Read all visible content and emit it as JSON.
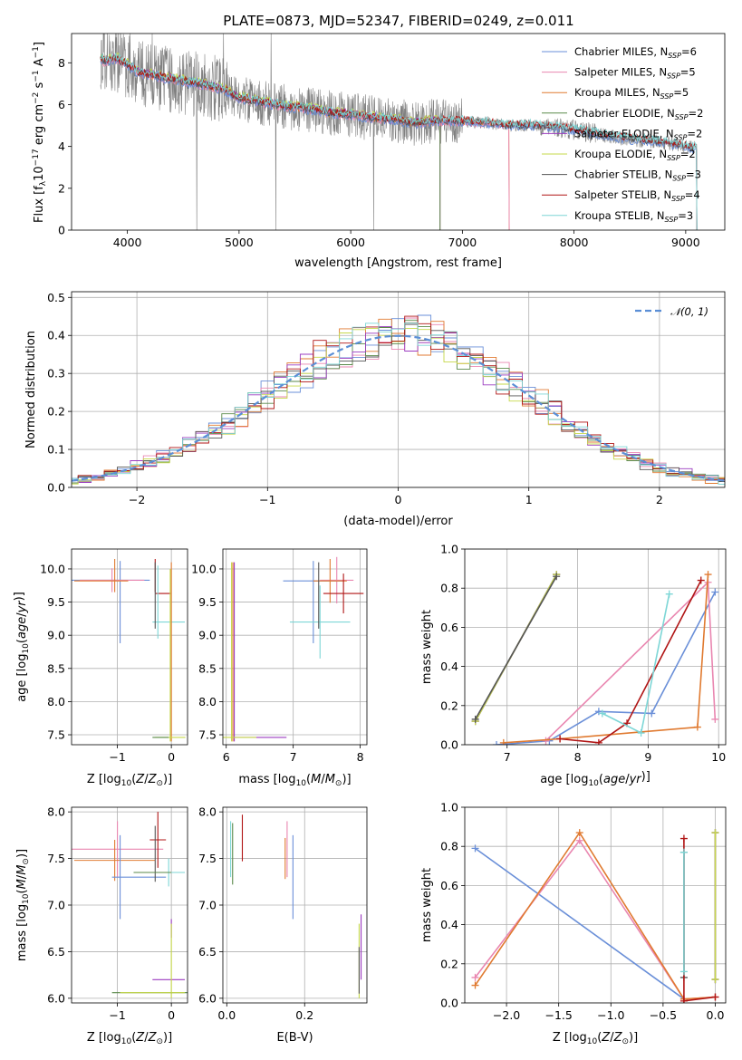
{
  "title": "PLATE=0873, MJD=52347, FIBERID=0249, z=0.011",
  "colors": {
    "chabrier_miles": "#6a8fd8",
    "salpeter_miles": "#e986b0",
    "kroupa_miles": "#e07a30",
    "chabrier_elodie": "#5a8a4a",
    "salpeter_elodie": "#9b3cc0",
    "kroupa_elodie": "#c6d84a",
    "chabrier_stelib": "#555555",
    "salpeter_stelib": "#b01515",
    "kroupa_stelib": "#7dd6d6",
    "data": "#808080"
  },
  "chart_data": [
    {
      "id": "spectrum",
      "type": "line",
      "title": "PLATE=0873, MJD=52347, FIBERID=0249, z=0.011",
      "xlabel": "wavelength [Angstrom, rest frame]",
      "ylabel_parts": [
        "Flux [f",
        "λ",
        "10",
        "−17",
        " erg cm",
        "−2",
        " s",
        "−1",
        " A",
        "−1",
        "]"
      ],
      "xlim": [
        3500,
        9350
      ],
      "ylim": [
        0,
        9.4
      ],
      "xticks": [
        4000,
        5000,
        6000,
        7000,
        8000,
        9000
      ],
      "yticks": [
        0,
        2,
        4,
        6,
        8
      ],
      "legend": [
        {
          "name": "Chabrier MILES",
          "n": "6",
          "color_key": "chabrier_miles"
        },
        {
          "name": "Salpeter MILES",
          "n": "5",
          "color_key": "salpeter_miles"
        },
        {
          "name": "Kroupa MILES",
          "n": "5",
          "color_key": "kroupa_miles"
        },
        {
          "name": "Chabrier ELODIE",
          "n": "2",
          "color_key": "chabrier_elodie"
        },
        {
          "name": "Salpeter ELODIE",
          "n": "2",
          "color_key": "salpeter_elodie"
        },
        {
          "name": "Kroupa ELODIE",
          "n": "2",
          "color_key": "kroupa_elodie"
        },
        {
          "name": "Chabrier STELIB",
          "n": "3",
          "color_key": "chabrier_stelib"
        },
        {
          "name": "Salpeter STELIB",
          "n": "4",
          "color_key": "salpeter_stelib"
        },
        {
          "name": "Kroupa STELIB",
          "n": "3",
          "color_key": "kroupa_stelib"
        }
      ],
      "legend_subscript": "SSP",
      "legend_placement": "top-right",
      "continuum": [
        [
          3750,
          8.3
        ],
        [
          3800,
          8.0
        ],
        [
          3900,
          8.2
        ],
        [
          4000,
          7.9
        ],
        [
          4100,
          7.5
        ],
        [
          4300,
          7.3
        ],
        [
          4500,
          7.1
        ],
        [
          4700,
          6.9
        ],
        [
          4861,
          6.7
        ],
        [
          5000,
          6.3
        ],
        [
          5200,
          6.1
        ],
        [
          5400,
          5.9
        ],
        [
          5600,
          5.8
        ],
        [
          5800,
          5.6
        ],
        [
          6000,
          5.5
        ],
        [
          6200,
          5.35
        ],
        [
          6400,
          5.25
        ],
        [
          6563,
          5.1
        ],
        [
          6800,
          5.2
        ],
        [
          7000,
          5.2
        ],
        [
          7200,
          5.15
        ],
        [
          7400,
          5.0
        ],
        [
          7600,
          5.0
        ],
        [
          7800,
          4.9
        ],
        [
          8000,
          4.8
        ],
        [
          8200,
          4.6
        ],
        [
          8400,
          4.4
        ],
        [
          8600,
          4.3
        ],
        [
          8800,
          4.2
        ],
        [
          9000,
          4.0
        ],
        [
          9100,
          3.9
        ]
      ],
      "elodie_end": 6800,
      "miles_end": 7420,
      "stelib_end": 9100
    },
    {
      "id": "residuals",
      "type": "line",
      "xlabel": "(data-model)/error",
      "ylabel": "Normed distribution",
      "xlim": [
        -2.5,
        2.5
      ],
      "ylim": [
        0,
        0.515
      ],
      "xticks": [
        -2,
        -1,
        0,
        1,
        2
      ],
      "yticks": [
        0,
        0.1,
        0.2,
        0.3,
        0.4,
        0.5
      ],
      "grid": true,
      "legend_label": "𝒩(0, 1)",
      "legend_placement": "top-right",
      "normal_curve": {
        "mean": 0,
        "sigma": 1
      }
    },
    {
      "id": "age_vs_Z",
      "type": "scatter",
      "xlabel": "Z [log10(Z/Z⊙)]",
      "ylabel": "age  [log10(age/yr)]",
      "xlim": [
        -1.85,
        0.3
      ],
      "ylim": [
        7.35,
        10.3
      ],
      "xticks": [
        -1,
        0
      ],
      "yticks": [
        7.5,
        8.0,
        8.5,
        9.0,
        9.5,
        10.0
      ],
      "grid": true
    },
    {
      "id": "age_vs_mass",
      "type": "scatter",
      "xlabel": "mass [log10(M/M⊙)]",
      "xlim": [
        5.95,
        8.1
      ],
      "ylim": [
        7.35,
        10.3
      ],
      "xticks": [
        6,
        7,
        8
      ],
      "yticks": [
        7.5,
        8.0,
        8.5,
        9.0,
        9.5,
        10.0
      ],
      "grid": true
    },
    {
      "id": "mw_vs_age",
      "type": "line",
      "xlabel": "age  [log10(age/yr)]",
      "ylabel": "mass weight",
      "xlim": [
        6.4,
        10.1
      ],
      "ylim": [
        0,
        1.0
      ],
      "xticks": [
        7,
        8,
        9,
        10
      ],
      "yticks": [
        0.0,
        0.2,
        0.4,
        0.6,
        0.8,
        1.0
      ],
      "grid": true,
      "series": [
        {
          "color_key": "chabrier_miles",
          "x": [
            6.85,
            7.6,
            8.3,
            9.05,
            9.95
          ],
          "y": [
            0.0,
            0.02,
            0.17,
            0.16,
            0.78
          ]
        },
        {
          "color_key": "salpeter_miles",
          "x": [
            7.55,
            9.85,
            9.95
          ],
          "y": [
            0.02,
            0.83,
            0.13
          ]
        },
        {
          "color_key": "kroupa_miles",
          "x": [
            6.95,
            7.75,
            9.7,
            9.85
          ],
          "y": [
            0.01,
            0.03,
            0.09,
            0.87
          ]
        },
        {
          "color_key": "chabrier_elodie",
          "x": [
            6.55,
            7.7
          ],
          "y": [
            0.12,
            0.87
          ]
        },
        {
          "color_key": "salpeter_elodie",
          "x": [
            6.55,
            7.7
          ],
          "y": [
            0.12,
            0.87
          ]
        },
        {
          "color_key": "kroupa_elodie",
          "x": [
            6.55,
            7.7
          ],
          "y": [
            0.12,
            0.87
          ]
        },
        {
          "color_key": "chabrier_stelib",
          "x": [
            6.55,
            7.7
          ],
          "y": [
            0.13,
            0.86
          ]
        },
        {
          "color_key": "salpeter_stelib",
          "x": [
            7.75,
            8.3,
            8.7,
            9.75
          ],
          "y": [
            0.03,
            0.01,
            0.11,
            0.84
          ]
        },
        {
          "color_key": "kroupa_stelib",
          "x": [
            8.35,
            8.9,
            9.3
          ],
          "y": [
            0.16,
            0.06,
            0.77
          ]
        }
      ]
    },
    {
      "id": "mass_vs_Z",
      "type": "scatter",
      "xlabel": "Z [log10(Z/Z⊙)]",
      "ylabel": "mass [log10(M/M⊙)]",
      "xlim": [
        -1.85,
        0.3
      ],
      "ylim": [
        5.95,
        8.05
      ],
      "xticks": [
        -1,
        0
      ],
      "yticks": [
        6.0,
        6.5,
        7.0,
        7.5,
        8.0
      ],
      "grid": true
    },
    {
      "id": "mass_vs_ebv",
      "type": "scatter",
      "xlabel": "E(B-V)",
      "xlim": [
        -0.01,
        0.36
      ],
      "ylim": [
        5.95,
        8.05
      ],
      "xticks": [
        0.0,
        0.2
      ],
      "yticks": [
        6.0,
        6.5,
        7.0,
        7.5,
        8.0
      ],
      "grid": true
    },
    {
      "id": "mw_vs_Z",
      "type": "line",
      "xlabel": "Z [log10(Z/Z⊙)]",
      "ylabel": "mass weight",
      "xlim": [
        -2.4,
        0.1
      ],
      "ylim": [
        0,
        1.0
      ],
      "xticks": [
        -2.0,
        -1.5,
        -1.0,
        -0.5,
        0.0
      ],
      "yticks": [
        0.0,
        0.2,
        0.4,
        0.6,
        0.8,
        1.0
      ],
      "grid": true,
      "series": [
        {
          "color_key": "chabrier_miles",
          "x": [
            -2.3,
            -0.3
          ],
          "y": [
            0.79,
            0.02
          ]
        },
        {
          "color_key": "salpeter_miles",
          "x": [
            -2.3,
            -1.3,
            -0.3,
            0.0
          ],
          "y": [
            0.13,
            0.83,
            0.02,
            0.03
          ]
        },
        {
          "color_key": "kroupa_miles",
          "x": [
            -2.3,
            -1.3,
            -0.3,
            0.0
          ],
          "y": [
            0.09,
            0.87,
            0.02,
            0.03
          ]
        },
        {
          "color_key": "chabrier_elodie",
          "x": [
            0.0,
            0.0
          ],
          "y": [
            0.12,
            0.87
          ]
        },
        {
          "color_key": "salpeter_elodie",
          "x": [
            0.0,
            0.0
          ],
          "y": [
            0.12,
            0.87
          ]
        },
        {
          "color_key": "kroupa_elodie",
          "x": [
            0.0,
            0.0
          ],
          "y": [
            0.12,
            0.87
          ]
        },
        {
          "color_key": "chabrier_stelib",
          "x": [
            -0.3,
            -0.3
          ],
          "y": [
            0.13,
            0.77
          ]
        },
        {
          "color_key": "salpeter_stelib",
          "x": [
            -0.3,
            -0.3,
            0.0
          ],
          "y": [
            0.84,
            0.01,
            0.03
          ]
        },
        {
          "color_key": "kroupa_stelib",
          "x": [
            -0.3,
            -0.3
          ],
          "y": [
            0.16,
            0.77
          ]
        }
      ]
    }
  ]
}
